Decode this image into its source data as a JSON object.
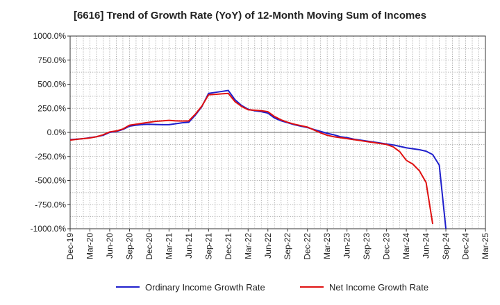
{
  "title": "[6616]  Trend of Growth Rate (YoY) of 12-Month Moving Sum of Incomes",
  "colors": {
    "ordinary": "#1f1fcc",
    "net": "#e01010",
    "grid": "#999999",
    "zero_line": "#666666",
    "axis": "#333333"
  },
  "chart_data": {
    "type": "line",
    "title": "[6616]  Trend of Growth Rate (YoY) of 12-Month Moving Sum of Incomes",
    "xlabel": "",
    "ylabel": "",
    "x_range": [
      "Dec-19",
      "Mar-25"
    ],
    "ylim": [
      -1000,
      1000
    ],
    "y_ticks": [
      1000,
      750,
      500,
      250,
      0,
      -250,
      -500,
      -750,
      -1000
    ],
    "y_tick_labels": [
      "1000.0%",
      "750.0%",
      "500.0%",
      "250.0%",
      "0.0%",
      "-250.0%",
      "-500.0%",
      "-750.0%",
      "-1000.0%"
    ],
    "x_tick_labels": [
      "Dec-19",
      "Mar-20",
      "Jun-20",
      "Sep-20",
      "Dec-20",
      "Mar-21",
      "Jun-21",
      "Sep-21",
      "Dec-21",
      "Mar-22",
      "Jun-22",
      "Sep-22",
      "Dec-22",
      "Mar-23",
      "Jun-23",
      "Sep-23",
      "Dec-23",
      "Mar-24",
      "Jun-24",
      "Sep-24",
      "Dec-24",
      "Mar-25"
    ],
    "grid": true,
    "legend_position": "bottom",
    "series": [
      {
        "name": "Ordinary Income Growth Rate",
        "color": "#1f1fcc",
        "points": [
          [
            "Dec-19",
            -75
          ],
          [
            "Jan-20",
            -70
          ],
          [
            "Feb-20",
            -65
          ],
          [
            "Mar-20",
            -55
          ],
          [
            "Apr-20",
            -45
          ],
          [
            "May-20",
            -30
          ],
          [
            "Jun-20",
            0
          ],
          [
            "Jul-20",
            10
          ],
          [
            "Aug-20",
            30
          ],
          [
            "Sep-20",
            65
          ],
          [
            "Oct-20",
            75
          ],
          [
            "Nov-20",
            82
          ],
          [
            "Dec-20",
            85
          ],
          [
            "Jan-21",
            82
          ],
          [
            "Feb-21",
            80
          ],
          [
            "Mar-21",
            80
          ],
          [
            "Apr-21",
            90
          ],
          [
            "May-21",
            100
          ],
          [
            "Jun-21",
            105
          ],
          [
            "Jul-21",
            180
          ],
          [
            "Aug-21",
            270
          ],
          [
            "Sep-21",
            405
          ],
          [
            "Oct-21",
            415
          ],
          [
            "Nov-21",
            425
          ],
          [
            "Dec-21",
            435
          ],
          [
            "Jan-22",
            340
          ],
          [
            "Feb-22",
            280
          ],
          [
            "Mar-22",
            240
          ],
          [
            "Apr-22",
            225
          ],
          [
            "May-22",
            215
          ],
          [
            "Jun-22",
            200
          ],
          [
            "Jul-22",
            150
          ],
          [
            "Aug-22",
            120
          ],
          [
            "Sep-22",
            100
          ],
          [
            "Oct-22",
            80
          ],
          [
            "Nov-22",
            65
          ],
          [
            "Dec-22",
            50
          ],
          [
            "Jan-23",
            30
          ],
          [
            "Feb-23",
            10
          ],
          [
            "Mar-23",
            -10
          ],
          [
            "Apr-23",
            -25
          ],
          [
            "May-23",
            -45
          ],
          [
            "Jun-23",
            -55
          ],
          [
            "Jul-23",
            -70
          ],
          [
            "Aug-23",
            -80
          ],
          [
            "Sep-23",
            -90
          ],
          [
            "Oct-23",
            -100
          ],
          [
            "Nov-23",
            -110
          ],
          [
            "Dec-23",
            -120
          ],
          [
            "Jan-24",
            -130
          ],
          [
            "Feb-24",
            -145
          ],
          [
            "Mar-24",
            -160
          ],
          [
            "Apr-24",
            -170
          ],
          [
            "May-24",
            -180
          ],
          [
            "Jun-24",
            -195
          ],
          [
            "Jul-24",
            -230
          ],
          [
            "Aug-24",
            -340
          ],
          [
            "Sep-24",
            -1000
          ]
        ]
      },
      {
        "name": "Net Income Growth Rate",
        "color": "#e01010",
        "points": [
          [
            "Dec-19",
            -80
          ],
          [
            "Jan-20",
            -72
          ],
          [
            "Feb-20",
            -65
          ],
          [
            "Mar-20",
            -58
          ],
          [
            "Apr-20",
            -45
          ],
          [
            "May-20",
            -25
          ],
          [
            "Jun-20",
            5
          ],
          [
            "Jul-20",
            15
          ],
          [
            "Aug-20",
            35
          ],
          [
            "Sep-20",
            75
          ],
          [
            "Oct-20",
            85
          ],
          [
            "Nov-20",
            95
          ],
          [
            "Dec-20",
            105
          ],
          [
            "Jan-21",
            115
          ],
          [
            "Feb-21",
            120
          ],
          [
            "Mar-21",
            125
          ],
          [
            "Apr-21",
            120
          ],
          [
            "May-21",
            118
          ],
          [
            "Jun-21",
            120
          ],
          [
            "Jul-21",
            190
          ],
          [
            "Aug-21",
            275
          ],
          [
            "Sep-21",
            390
          ],
          [
            "Oct-21",
            395
          ],
          [
            "Nov-21",
            400
          ],
          [
            "Dec-21",
            405
          ],
          [
            "Jan-22",
            320
          ],
          [
            "Feb-22",
            270
          ],
          [
            "Mar-22",
            235
          ],
          [
            "Apr-22",
            230
          ],
          [
            "May-22",
            225
          ],
          [
            "Jun-22",
            215
          ],
          [
            "Jul-22",
            165
          ],
          [
            "Aug-22",
            130
          ],
          [
            "Sep-22",
            105
          ],
          [
            "Oct-22",
            85
          ],
          [
            "Nov-22",
            70
          ],
          [
            "Dec-22",
            55
          ],
          [
            "Jan-23",
            25
          ],
          [
            "Feb-23",
            -5
          ],
          [
            "Mar-23",
            -30
          ],
          [
            "Apr-23",
            -45
          ],
          [
            "May-23",
            -55
          ],
          [
            "Jun-23",
            -65
          ],
          [
            "Jul-23",
            -75
          ],
          [
            "Aug-23",
            -85
          ],
          [
            "Sep-23",
            -95
          ],
          [
            "Oct-23",
            -105
          ],
          [
            "Nov-23",
            -115
          ],
          [
            "Dec-23",
            -125
          ],
          [
            "Jan-24",
            -150
          ],
          [
            "Feb-24",
            -200
          ],
          [
            "Mar-24",
            -290
          ],
          [
            "Apr-24",
            -330
          ],
          [
            "May-24",
            -400
          ],
          [
            "Jun-24",
            -520
          ],
          [
            "Jul-24",
            -950
          ]
        ]
      }
    ]
  }
}
